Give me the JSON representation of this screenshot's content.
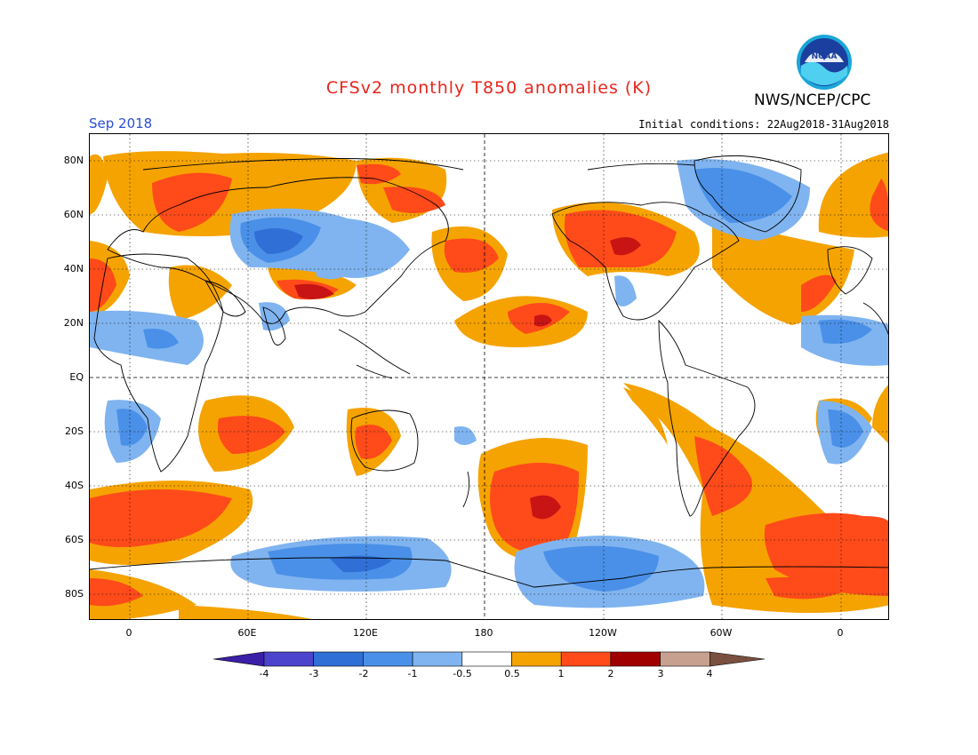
{
  "header": {
    "title": "CFSv2 monthly T850 anomalies (K)",
    "agency": "NWS/NCEP/CPC",
    "month": "Sep 2018",
    "initial_conditions": "Initial conditions: 22Aug2018-31Aug2018",
    "logo_text": "NOAA"
  },
  "map": {
    "lat_labels": [
      "80N",
      "60N",
      "40N",
      "20N",
      "EQ",
      "20S",
      "40S",
      "60S",
      "80S"
    ],
    "lon_labels": [
      "0",
      "60E",
      "120E",
      "180",
      "120W",
      "60W",
      "0"
    ],
    "projection": "cylindrical equidistant, centered on 180",
    "grid": "dotted"
  },
  "colorbar": {
    "labels": [
      "-4",
      "-3",
      "-2",
      "-1",
      "-0.5",
      "0.5",
      "1",
      "2",
      "3",
      "4"
    ],
    "colors": [
      "#3b1fa8",
      "#4c44cc",
      "#2f6fd6",
      "#4a90e8",
      "#80b4f0",
      "#ffffff",
      "#f5a300",
      "#ff4a1a",
      "#c81414",
      "#a00000",
      "#c8a090",
      "#7a5040"
    ]
  },
  "colors": {
    "title": "#e8261c",
    "month": "#2a4fd6",
    "warm1": "#f5a300",
    "warm2": "#ff4a1a",
    "warm3": "#c81414",
    "cool1": "#80b4f0",
    "cool2": "#4a90e8",
    "cool3": "#2f6fd6"
  }
}
